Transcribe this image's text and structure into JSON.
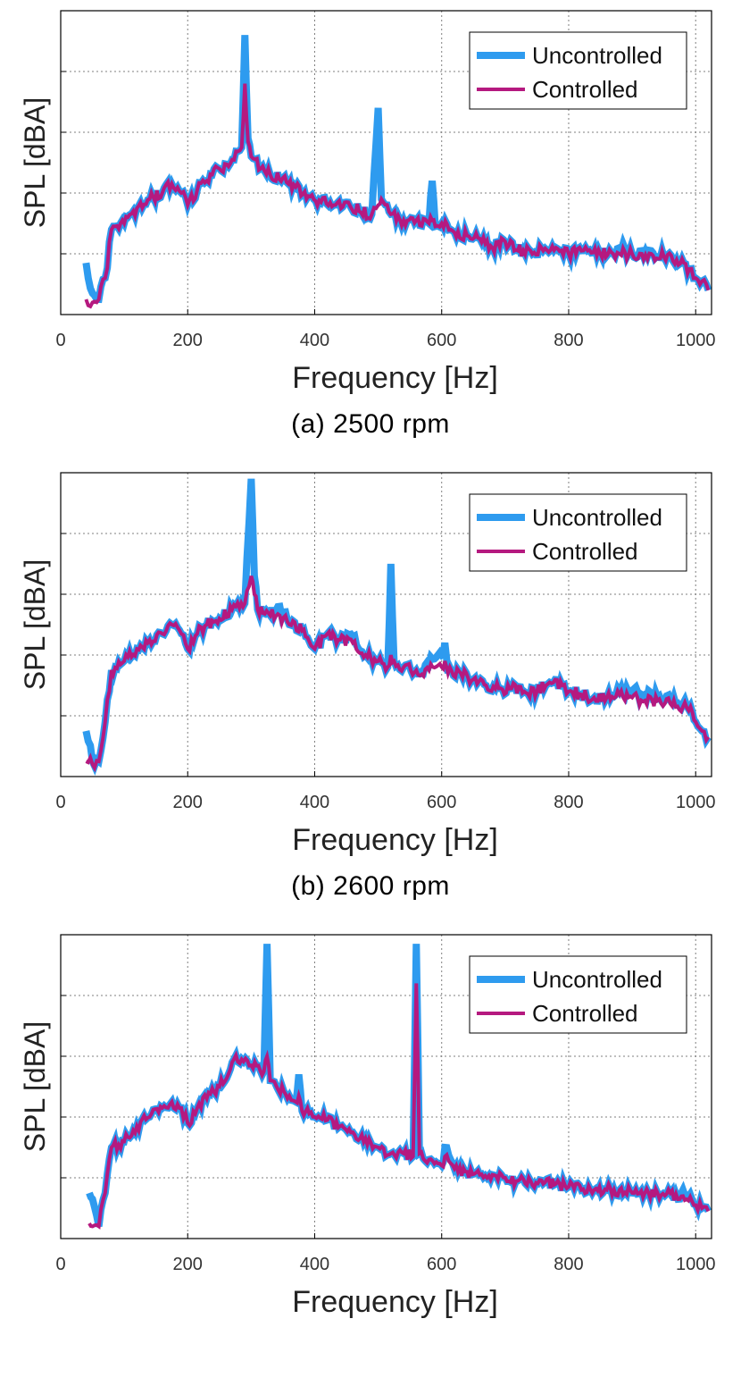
{
  "colors": {
    "uncontrolled": "#2E9BEF",
    "controlled": "#B5197F",
    "axes": "#000000",
    "grid": "#7F7F7F"
  },
  "chart_data": [
    {
      "type": "line",
      "caption": "(a) 2500 rpm",
      "xlabel": "Frequency [Hz]",
      "ylabel": "SPL [dBA]",
      "xlim": [
        0,
        1025
      ],
      "xticks": [
        "0",
        "200",
        "400",
        "600",
        "800",
        "1000"
      ],
      "grid": true,
      "legend": "top-right",
      "x": [
        40,
        50,
        60,
        70,
        80,
        100,
        120,
        140,
        160,
        175,
        190,
        200,
        215,
        230,
        250,
        270,
        285,
        290,
        295,
        300,
        315,
        330,
        350,
        370,
        390,
        410,
        430,
        450,
        470,
        490,
        500,
        505,
        520,
        540,
        560,
        580,
        585,
        590,
        600,
        620,
        640,
        660,
        680,
        700,
        720,
        740,
        760,
        780,
        800,
        820,
        830,
        850,
        870,
        880,
        900,
        915,
        930,
        950,
        970,
        990,
        1000,
        1010,
        1020
      ],
      "series": [
        {
          "name": "Uncontrolled",
          "values": [
            17,
            7,
            5,
            12,
            28,
            30,
            35,
            38,
            40,
            43,
            40,
            36,
            41,
            44,
            48,
            51,
            55,
            92,
            58,
            52,
            48,
            46,
            45,
            42,
            39,
            37,
            36,
            37,
            34,
            33,
            68,
            38,
            33,
            31,
            31,
            30,
            44,
            29,
            30,
            27,
            26,
            25,
            22,
            24,
            21,
            21,
            21,
            22,
            20,
            21,
            21,
            20,
            20,
            22,
            20,
            21,
            21,
            19,
            18,
            15,
            12,
            11,
            8
          ]
        },
        {
          "name": "Controlled",
          "values": [
            5,
            4,
            5,
            12,
            28,
            30,
            35,
            38,
            40,
            43,
            40,
            36,
            41,
            44,
            48,
            51,
            55,
            76,
            57,
            52,
            48,
            46,
            45,
            42,
            39,
            37,
            36,
            37,
            34,
            33,
            36,
            38,
            33,
            31,
            31,
            30,
            31,
            29,
            30,
            27,
            26,
            25,
            22,
            24,
            21,
            21,
            21,
            22,
            20,
            21,
            21,
            20,
            20,
            20,
            20,
            20,
            20,
            19,
            18,
            15,
            12,
            11,
            8
          ]
        }
      ]
    },
    {
      "type": "line",
      "caption": "(b) 2600 rpm",
      "xlabel": "Frequency [Hz]",
      "ylabel": "SPL [dBA]",
      "xlim": [
        0,
        1025
      ],
      "xticks": [
        "0",
        "200",
        "400",
        "600",
        "800",
        "1000"
      ],
      "grid": true,
      "legend": "top-right",
      "x": [
        40,
        50,
        60,
        70,
        80,
        100,
        120,
        140,
        160,
        175,
        190,
        200,
        215,
        230,
        250,
        270,
        290,
        300,
        305,
        310,
        330,
        345,
        360,
        380,
        400,
        420,
        440,
        460,
        480,
        500,
        515,
        520,
        525,
        540,
        560,
        580,
        600,
        605,
        610,
        630,
        650,
        670,
        690,
        710,
        730,
        750,
        770,
        790,
        800,
        820,
        840,
        860,
        880,
        900,
        920,
        940,
        960,
        980,
        995,
        1000,
        1010,
        1020
      ],
      "series": [
        {
          "name": "Uncontrolled",
          "values": [
            15,
            5,
            5,
            18,
            35,
            38,
            42,
            45,
            47,
            50,
            47,
            42,
            47,
            50,
            52,
            55,
            57,
            98,
            66,
            55,
            53,
            56,
            50,
            48,
            42,
            47,
            45,
            46,
            40,
            38,
            36,
            70,
            38,
            36,
            35,
            37,
            40,
            44,
            34,
            34,
            32,
            30,
            29,
            29,
            28,
            28,
            31,
            30,
            28,
            27,
            26,
            26,
            28,
            28,
            27,
            26,
            25,
            24,
            21,
            18,
            15,
            13
          ]
        },
        {
          "name": "Controlled",
          "values": [
            5,
            4,
            5,
            18,
            35,
            38,
            42,
            45,
            47,
            50,
            47,
            42,
            47,
            50,
            52,
            55,
            57,
            66,
            60,
            55,
            53,
            53,
            50,
            48,
            42,
            47,
            45,
            44,
            40,
            38,
            36,
            40,
            38,
            36,
            35,
            35,
            36,
            38,
            34,
            34,
            32,
            30,
            29,
            29,
            28,
            28,
            31,
            30,
            28,
            27,
            26,
            26,
            27,
            26,
            25,
            25,
            24,
            23,
            21,
            18,
            15,
            13
          ]
        }
      ]
    },
    {
      "type": "line",
      "caption": "",
      "xlabel": "Frequency [Hz]",
      "ylabel": "SPL [dBA]",
      "xlim": [
        0,
        1025
      ],
      "xticks": [
        "0",
        "200",
        "400",
        "600",
        "800",
        "1000"
      ],
      "grid": true,
      "legend": "top-right",
      "x": [
        45,
        50,
        60,
        70,
        80,
        100,
        120,
        140,
        160,
        175,
        190,
        200,
        215,
        230,
        250,
        270,
        285,
        300,
        320,
        325,
        330,
        340,
        360,
        370,
        375,
        380,
        400,
        420,
        440,
        460,
        480,
        500,
        520,
        540,
        555,
        560,
        565,
        580,
        600,
        605,
        620,
        640,
        660,
        680,
        700,
        720,
        740,
        760,
        780,
        800,
        820,
        840,
        860,
        880,
        900,
        920,
        940,
        960,
        975,
        980,
        1000,
        1010,
        1020
      ],
      "series": [
        {
          "name": "Uncontrolled",
          "values": [
            15,
            13,
            4,
            15,
            30,
            32,
            37,
            40,
            43,
            45,
            43,
            38,
            43,
            46,
            50,
            58,
            59,
            57,
            55,
            97,
            52,
            50,
            47,
            45,
            54,
            42,
            40,
            39,
            37,
            35,
            33,
            30,
            28,
            28,
            27,
            97,
            28,
            26,
            24,
            30,
            23,
            22,
            21,
            21,
            20,
            19,
            19,
            18,
            18,
            17,
            16,
            16,
            16,
            16,
            15,
            15,
            15,
            15,
            13,
            16,
            11,
            10,
            9
          ]
        },
        {
          "name": "Controlled",
          "values": [
            5,
            4,
            4,
            15,
            30,
            32,
            37,
            40,
            43,
            45,
            43,
            38,
            43,
            46,
            50,
            58,
            59,
            57,
            55,
            60,
            52,
            50,
            47,
            45,
            47,
            42,
            40,
            39,
            37,
            35,
            33,
            30,
            28,
            28,
            27,
            84,
            28,
            26,
            24,
            27,
            23,
            22,
            21,
            21,
            20,
            19,
            19,
            18,
            18,
            17,
            16,
            16,
            16,
            16,
            15,
            15,
            15,
            15,
            13,
            14,
            11,
            10,
            9
          ]
        }
      ]
    }
  ]
}
